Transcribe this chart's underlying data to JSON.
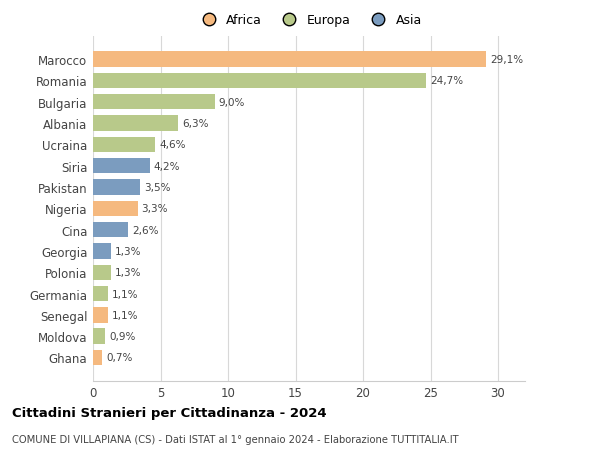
{
  "categories": [
    "Marocco",
    "Romania",
    "Bulgaria",
    "Albania",
    "Ucraina",
    "Siria",
    "Pakistan",
    "Nigeria",
    "Cina",
    "Georgia",
    "Polonia",
    "Germania",
    "Senegal",
    "Moldova",
    "Ghana"
  ],
  "values": [
    29.1,
    24.7,
    9.0,
    6.3,
    4.6,
    4.2,
    3.5,
    3.3,
    2.6,
    1.3,
    1.3,
    1.1,
    1.1,
    0.9,
    0.7
  ],
  "labels": [
    "29,1%",
    "24,7%",
    "9,0%",
    "6,3%",
    "4,6%",
    "4,2%",
    "3,5%",
    "3,3%",
    "2,6%",
    "1,3%",
    "1,3%",
    "1,1%",
    "1,1%",
    "0,9%",
    "0,7%"
  ],
  "continents": [
    "Africa",
    "Europa",
    "Europa",
    "Europa",
    "Europa",
    "Asia",
    "Asia",
    "Africa",
    "Asia",
    "Asia",
    "Europa",
    "Europa",
    "Africa",
    "Europa",
    "Africa"
  ],
  "colors": {
    "Africa": "#F5B97F",
    "Europa": "#B8C98A",
    "Asia": "#7B9CBF"
  },
  "title": "Cittadini Stranieri per Cittadinanza - 2024",
  "subtitle": "COMUNE DI VILLAPIANA (CS) - Dati ISTAT al 1° gennaio 2024 - Elaborazione TUTTITALIA.IT",
  "xlim": [
    0,
    32
  ],
  "xticks": [
    0,
    5,
    10,
    15,
    20,
    25,
    30
  ],
  "bar_height": 0.72
}
